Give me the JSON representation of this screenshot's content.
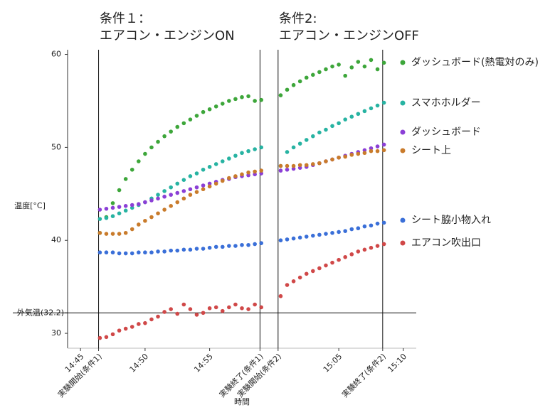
{
  "chart_data": {
    "type": "scatter",
    "annotations": [
      [
        "条件１：",
        "エアコン・エンジンON"
      ],
      [
        "条件2:",
        "エアコン・エンジンOFF"
      ]
    ],
    "xlabel": "時間",
    "ylabel": "温度[°C]",
    "xlim": [
      44,
      71
    ],
    "ylim": [
      28.4,
      60.5
    ],
    "xticks": [
      {
        "value": 45,
        "label": "14:45"
      },
      {
        "value": 46.4,
        "label": "実験開始(条件1)",
        "line": true
      },
      {
        "value": 50,
        "label": "14:50"
      },
      {
        "value": 55,
        "label": "14:55"
      },
      {
        "value": 58.9,
        "label": "実験終了(条件1)",
        "line": true
      },
      {
        "value": 60.3,
        "label": "実験開始(条件2)",
        "line": true
      },
      {
        "value": 65,
        "label": "15:05"
      },
      {
        "value": 68.4,
        "label": "実験終了(条件2)",
        "line": true
      },
      {
        "value": 70,
        "label": "15:10"
      }
    ],
    "yticks": [
      30,
      {
        "value": 32.2,
        "label": "外気温(32.2)",
        "line": true
      },
      40,
      50,
      60
    ],
    "x": [
      46.5,
      47,
      47.5,
      48,
      48.5,
      49,
      49.5,
      50,
      50.5,
      51,
      51.5,
      52,
      52.5,
      53,
      53.5,
      54,
      54.5,
      55,
      55.5,
      56,
      56.5,
      57,
      57.5,
      58,
      58.5,
      59,
      60.5,
      61,
      61.5,
      62,
      62.5,
      63,
      63.5,
      64,
      64.5,
      65,
      65.5,
      66,
      66.5,
      67,
      67.5,
      68,
      68.5
    ],
    "series": [
      {
        "name": "ダッシュボード(熱電対のみ)",
        "color": "#3da63a",
        "values": [
          40.8,
          42.5,
          44.0,
          45.4,
          46.6,
          47.6,
          48.5,
          49.3,
          50.0,
          50.6,
          51.2,
          51.7,
          52.2,
          52.6,
          53.0,
          53.4,
          53.8,
          54.1,
          54.4,
          54.7,
          55.0,
          55.2,
          55.4,
          55.5,
          55.0,
          55.1,
          55.6,
          56.2,
          56.7,
          57.1,
          57.5,
          57.8,
          58.1,
          58.4,
          58.7,
          58.9,
          57.7,
          58.6,
          59.2,
          58.7,
          59.4,
          58.4,
          59.1
        ]
      },
      {
        "name": "スマホホルダー",
        "color": "#27b3a2",
        "values": [
          42.3,
          42.4,
          42.6,
          42.9,
          43.2,
          43.5,
          43.8,
          44.1,
          44.5,
          44.9,
          45.3,
          45.7,
          46.1,
          46.5,
          46.9,
          47.2,
          47.6,
          47.9,
          48.2,
          48.5,
          48.8,
          49.1,
          49.4,
          49.6,
          49.8,
          50.0,
          48.0,
          49.5,
          50.0,
          50.4,
          50.8,
          51.2,
          51.6,
          51.9,
          52.3,
          52.6,
          53.0,
          53.3,
          53.6,
          53.9,
          54.2,
          54.5,
          54.8
        ]
      },
      {
        "name": "ダッシュボード",
        "color": "#8b3fd6",
        "values": [
          43.3,
          43.4,
          43.5,
          43.6,
          43.7,
          43.8,
          43.9,
          44.1,
          44.3,
          44.5,
          44.7,
          44.9,
          45.1,
          45.3,
          45.5,
          45.7,
          45.9,
          46.1,
          46.3,
          46.5,
          46.6,
          46.8,
          46.9,
          47.0,
          47.1,
          47.2,
          47.5,
          47.6,
          47.7,
          47.8,
          47.9,
          48.1,
          48.3,
          48.5,
          48.7,
          48.9,
          49.1,
          49.3,
          49.5,
          49.7,
          49.9,
          50.1,
          50.3
        ]
      },
      {
        "name": "シート上",
        "color": "#c97b2b",
        "values": [
          40.8,
          40.7,
          40.7,
          40.7,
          40.8,
          41.2,
          41.7,
          42.1,
          42.5,
          42.9,
          43.3,
          43.7,
          44.1,
          44.5,
          44.9,
          45.2,
          45.5,
          45.8,
          46.1,
          46.4,
          46.7,
          46.9,
          47.1,
          47.3,
          47.4,
          47.5,
          48.0,
          48.0,
          48.0,
          48.1,
          48.1,
          48.2,
          48.3,
          48.5,
          48.7,
          48.9,
          49.0,
          49.2,
          49.3,
          49.4,
          49.6,
          49.6,
          49.7
        ]
      },
      {
        "name": "シート脇小物入れ",
        "color": "#3a6fd8",
        "values": [
          38.7,
          38.7,
          38.7,
          38.6,
          38.6,
          38.6,
          38.7,
          38.7,
          38.7,
          38.8,
          38.8,
          38.9,
          38.9,
          39.0,
          39.0,
          39.1,
          39.1,
          39.2,
          39.3,
          39.3,
          39.4,
          39.4,
          39.5,
          39.5,
          39.6,
          39.7,
          40.0,
          40.1,
          40.2,
          40.3,
          40.4,
          40.5,
          40.6,
          40.7,
          40.8,
          40.9,
          41.0,
          41.2,
          41.3,
          41.5,
          41.6,
          41.8,
          41.9
        ]
      },
      {
        "name": "エアコン吹出口",
        "color": "#d04848",
        "values": [
          29.5,
          29.6,
          29.9,
          30.3,
          30.5,
          30.7,
          31.0,
          31.1,
          31.5,
          31.8,
          32.3,
          32.6,
          32.1,
          33.1,
          32.6,
          32.0,
          32.2,
          32.7,
          32.8,
          32.4,
          32.8,
          33.1,
          32.7,
          32.6,
          33.1,
          32.8,
          34.0,
          35.2,
          35.6,
          36.0,
          36.4,
          36.7,
          37.0,
          37.3,
          37.6,
          37.9,
          38.2,
          38.5,
          38.8,
          39.0,
          39.2,
          39.4,
          39.6
        ]
      }
    ]
  }
}
